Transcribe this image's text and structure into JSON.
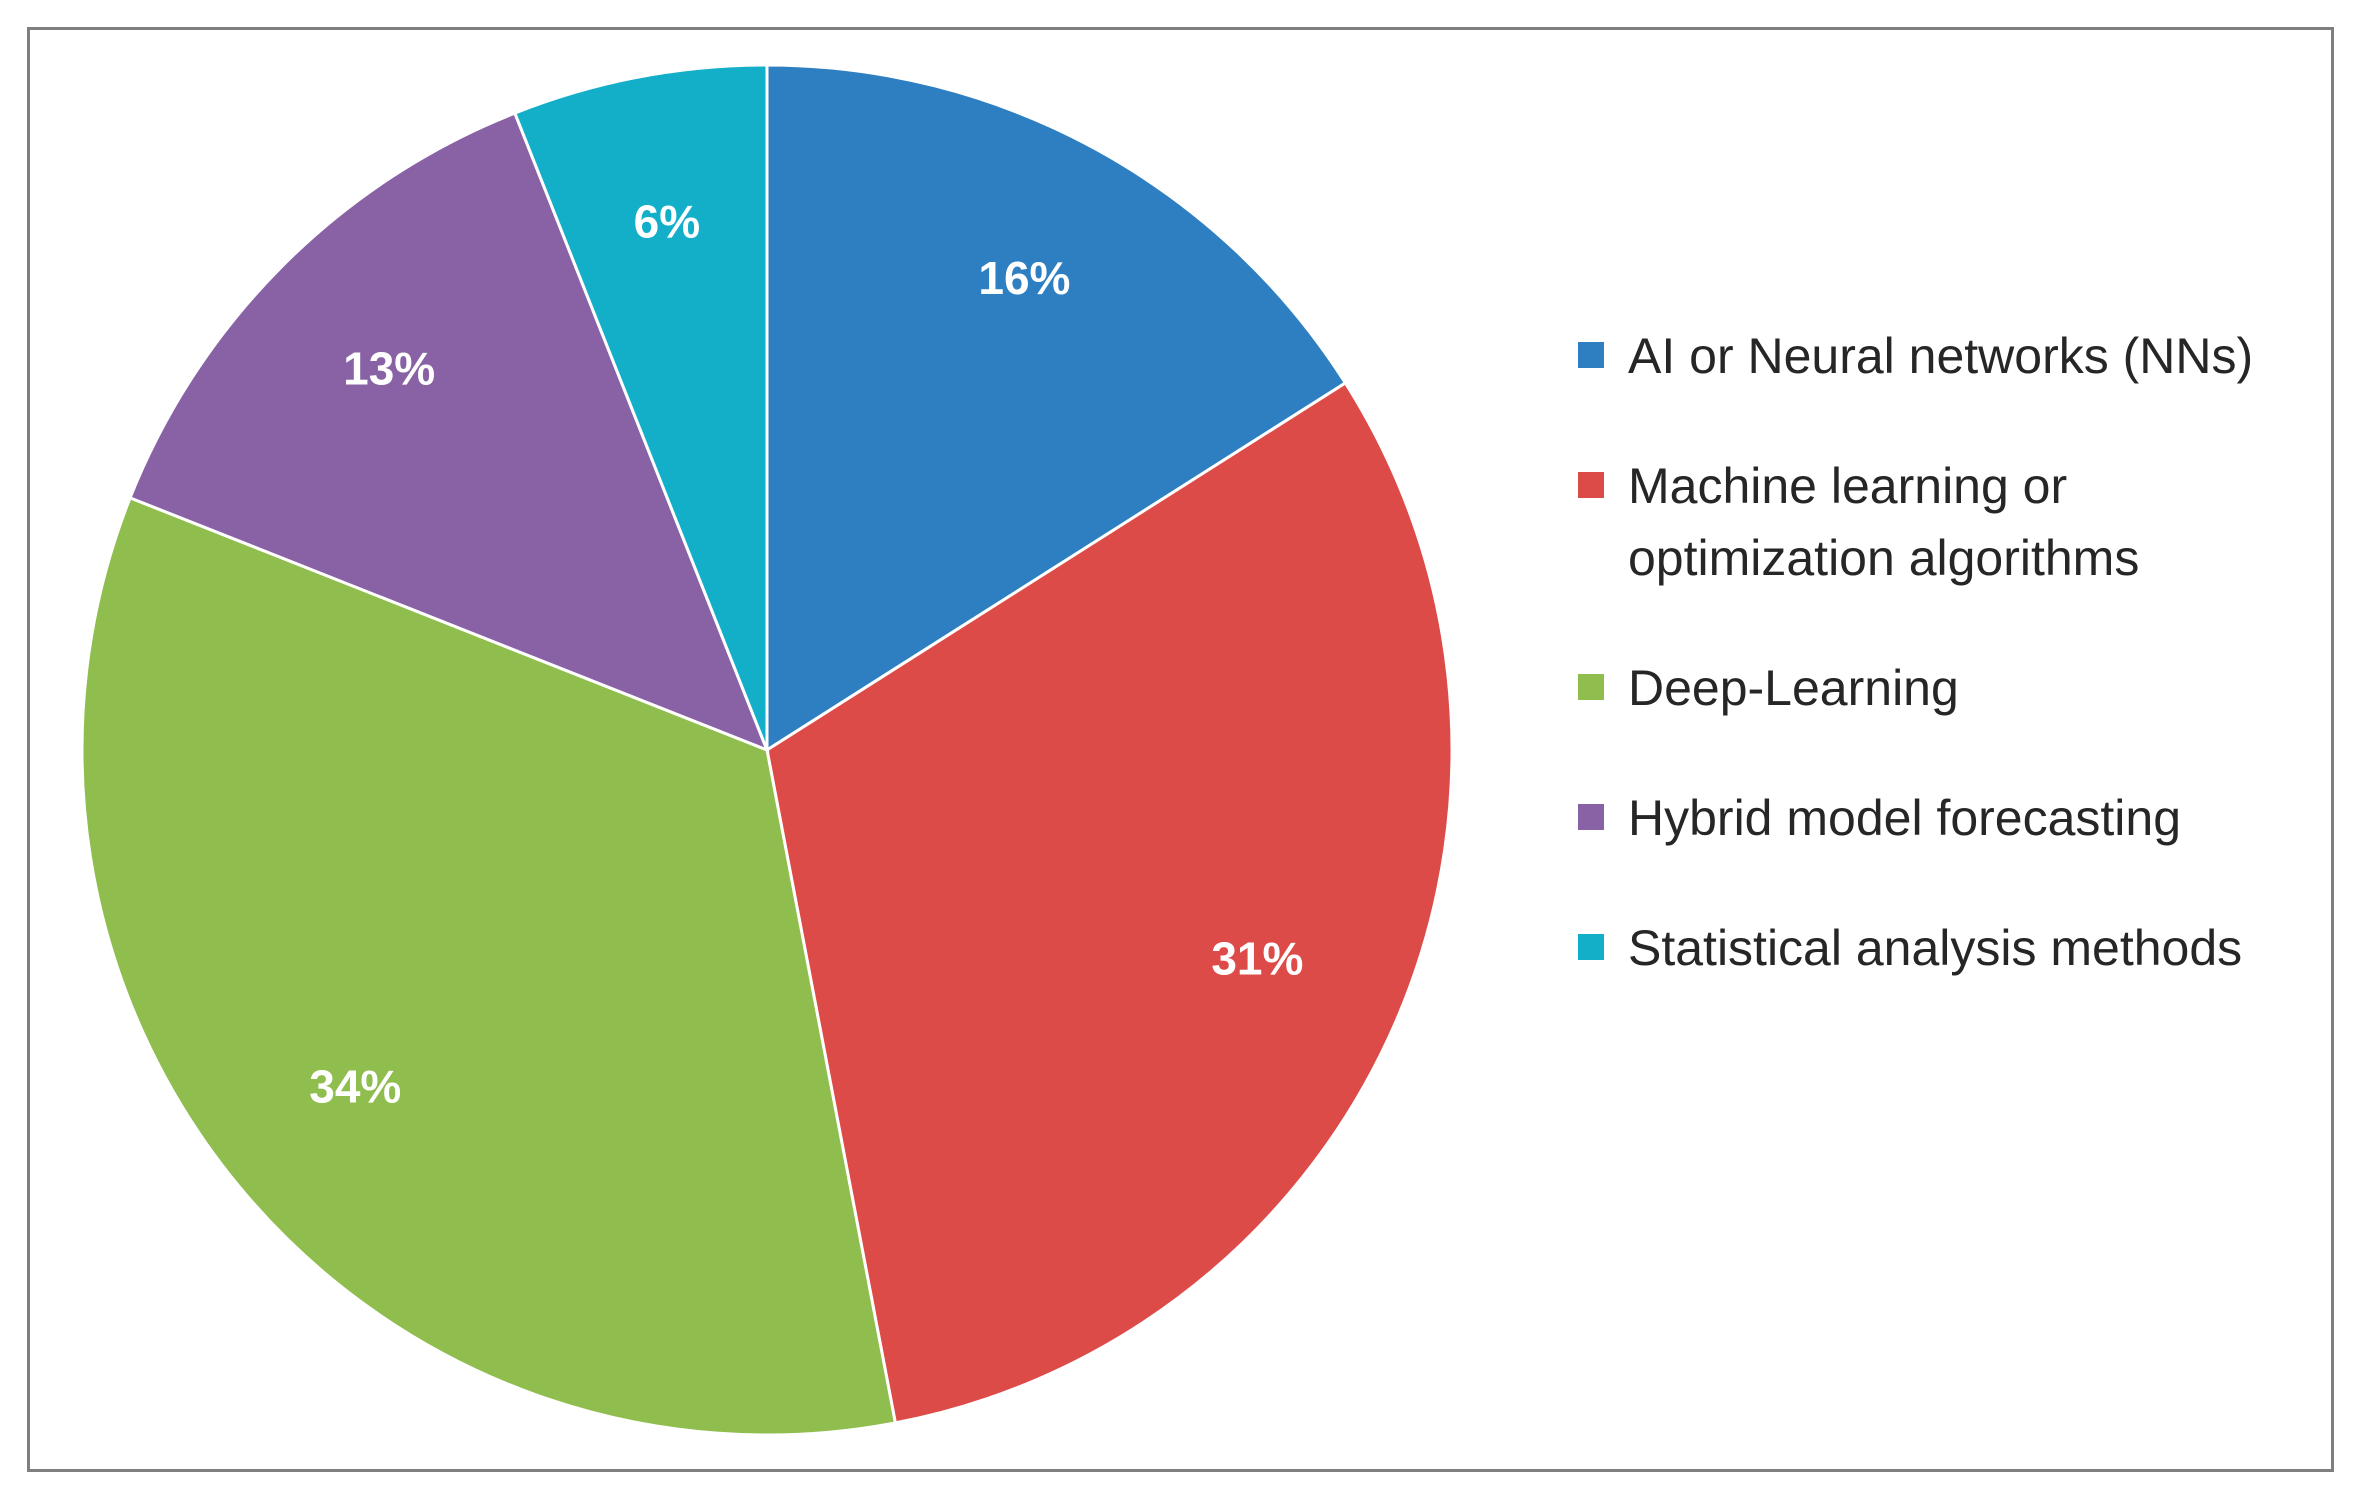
{
  "chart_data": {
    "type": "pie",
    "title": "",
    "legend_position": "right",
    "start_angle_deg": 0,
    "direction": "clockwise",
    "slices": [
      {
        "label": "AI or Neural networks (NNs)",
        "value": 16,
        "display": "16%",
        "color": "#2e7fc2"
      },
      {
        "label": "Machine learning or optimization algorithms",
        "value": 31,
        "display": "31%",
        "color": "#dd4b49"
      },
      {
        "label": "Deep-Learning",
        "value": 34,
        "display": "34%",
        "color": "#8fbd4e"
      },
      {
        "label": "Hybrid model forecasting",
        "value": 13,
        "display": "13%",
        "color": "#8862a4"
      },
      {
        "label": "Statistical analysis methods",
        "value": 6,
        "display": "6%",
        "color": "#13afc9"
      }
    ]
  }
}
